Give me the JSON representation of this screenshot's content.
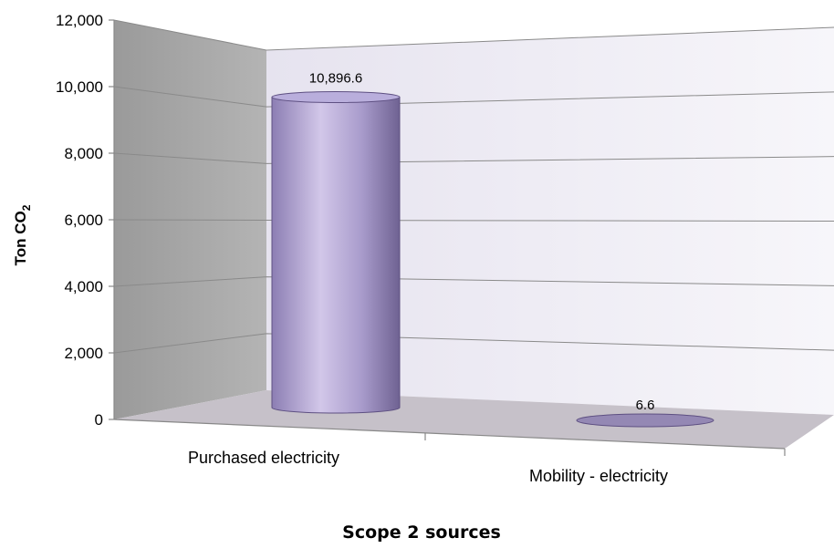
{
  "chart_data": {
    "type": "bar",
    "style": "3d-cylinder",
    "categories": [
      "Purchased electricity",
      "Mobility - electricity"
    ],
    "values": [
      10896.6,
      6.6
    ],
    "data_labels": [
      "10,896.6",
      "6.6"
    ],
    "y_ticks": [
      "0",
      "2,000",
      "4,000",
      "6,000",
      "8,000",
      "10,000",
      "12,000"
    ],
    "ylim": [
      0,
      12000
    ],
    "ylabel": {
      "main": "Ton CO",
      "sub": "2"
    },
    "xlabel": "Scope 2 sources",
    "grid": true,
    "legend": "none",
    "colors": {
      "bar": "#a99ccc",
      "bar_highlight": "#d2c7e9",
      "bar_shadow": "#6f6292",
      "bar_top": "#b9aedc",
      "back_wall": "#ece9f3",
      "side_wall": "#a6a6a6",
      "floor": "#c6c1c9"
    }
  }
}
